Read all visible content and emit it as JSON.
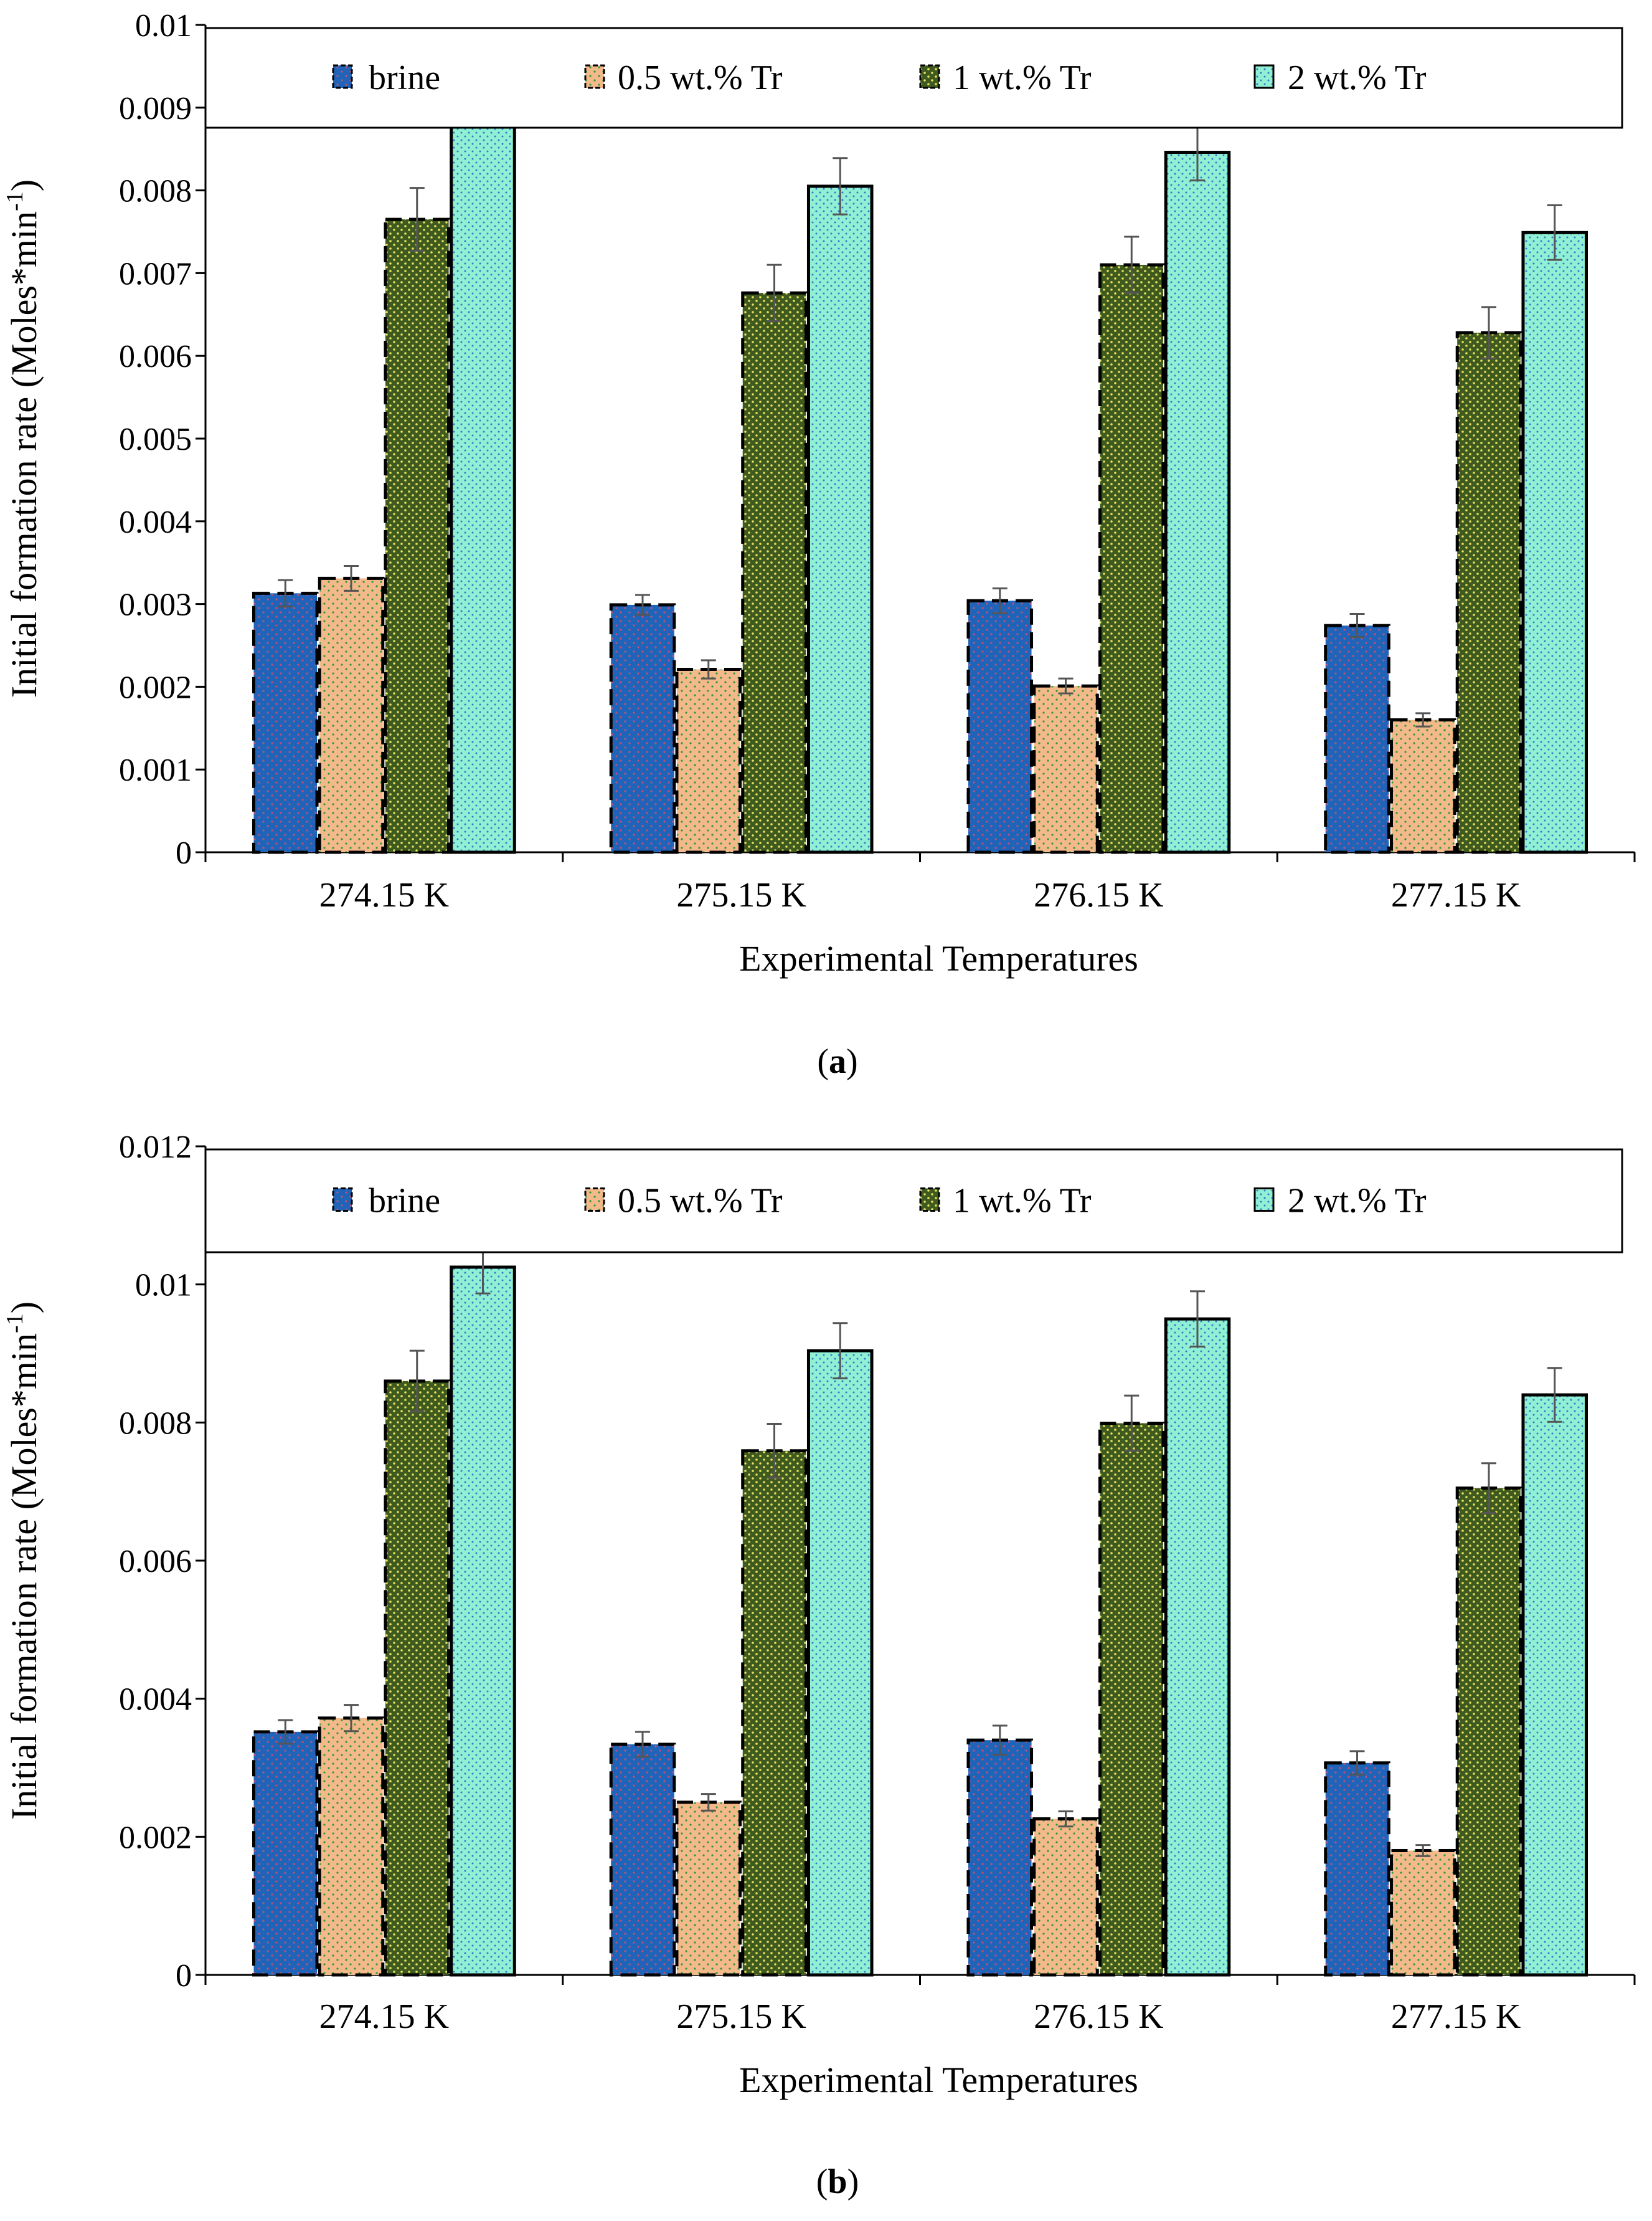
{
  "figure": {
    "panels": [
      {
        "caption": "(a)",
        "caption_letter": "a",
        "chart_data": {
          "type": "bar",
          "xlabel": "Experimental Temperatures",
          "ylabel": "Initial formation rate (Moles*min-1)",
          "ylabel_main": "Initial formation rate (Moles*min",
          "ylabel_sup": "-1",
          "ylabel_close": ")",
          "ylim": [
            0,
            0.01
          ],
          "yticks": [
            0,
            0.001,
            0.002,
            0.003,
            0.004,
            0.005,
            0.006,
            0.007,
            0.008,
            0.009,
            0.01
          ],
          "ytick_labels": [
            "0",
            "0.001",
            "0.002",
            "0.003",
            "0.004",
            "0.005",
            "0.006",
            "0.007",
            "0.008",
            "0.009",
            "0.01"
          ],
          "categories": [
            "274.15 K",
            "275.15 K",
            "276.15 K",
            "277.15 K"
          ],
          "legend_position": "top",
          "grid": false,
          "error_bars": true,
          "series": [
            {
              "name": "brine",
              "values": [
                0.00313,
                0.00299,
                0.00304,
                0.00274
              ],
              "errors": [
                0.00016,
                0.00012,
                0.00015,
                0.00014
              ],
              "color": "#1f64b8"
            },
            {
              "name": "0.5 wt.% Tr",
              "values": [
                0.00331,
                0.00221,
                0.00201,
                0.0016
              ],
              "errors": [
                0.00015,
                0.00011,
                9e-05,
                8e-05
              ],
              "color": "#f4b98a"
            },
            {
              "name": "1 wt.% Tr",
              "values": [
                0.00765,
                0.00676,
                0.0071,
                0.00628
              ],
              "errors": [
                0.00038,
                0.00034,
                0.00034,
                0.00031
              ],
              "color": "#3e5a1e"
            },
            {
              "name": "2 wt.% Tr",
              "values": [
                0.00913,
                0.00805,
                0.00846,
                0.00749
              ],
              "errors": [
                0.00032,
                0.00034,
                0.00034,
                0.00033
              ],
              "color": "#8ff0d4"
            }
          ]
        }
      },
      {
        "caption": "(b)",
        "caption_letter": "b",
        "chart_data": {
          "type": "bar",
          "xlabel": "Experimental Temperatures",
          "ylabel": "Initial formation rate (Moles*min-1)",
          "ylabel_main": "Initial formation rate (Moles*min",
          "ylabel_sup": "-1",
          "ylabel_close": ")",
          "ylim": [
            0,
            0.012
          ],
          "yticks": [
            0,
            0.002,
            0.004,
            0.006,
            0.008,
            0.01,
            0.012
          ],
          "ytick_labels": [
            "0",
            "0.002",
            "0.004",
            "0.006",
            "0.008",
            "0.01",
            "0.012"
          ],
          "categories": [
            "274.15 K",
            "275.15 K",
            "276.15 K",
            "277.15 K"
          ],
          "legend_position": "top",
          "grid": false,
          "error_bars": true,
          "series": [
            {
              "name": "brine",
              "values": [
                0.00352,
                0.00334,
                0.0034,
                0.00307
              ],
              "errors": [
                0.00017,
                0.00018,
                0.00021,
                0.00017
              ],
              "color": "#1f64b8"
            },
            {
              "name": "0.5 wt.% Tr",
              "values": [
                0.00372,
                0.0025,
                0.00226,
                0.0018
              ],
              "errors": [
                0.00019,
                0.00012,
                0.00011,
                8e-05
              ],
              "color": "#f4b98a"
            },
            {
              "name": "1 wt.% Tr",
              "values": [
                0.0086,
                0.00759,
                0.00799,
                0.00705
              ],
              "errors": [
                0.00044,
                0.00039,
                0.0004,
                0.00036
              ],
              "color": "#3e5a1e"
            },
            {
              "name": "2 wt.% Tr",
              "values": [
                0.01025,
                0.00904,
                0.0095,
                0.0084
              ],
              "errors": [
                0.00038,
                0.0004,
                0.0004,
                0.00039
              ],
              "color": "#8ff0d4"
            }
          ]
        }
      }
    ]
  }
}
